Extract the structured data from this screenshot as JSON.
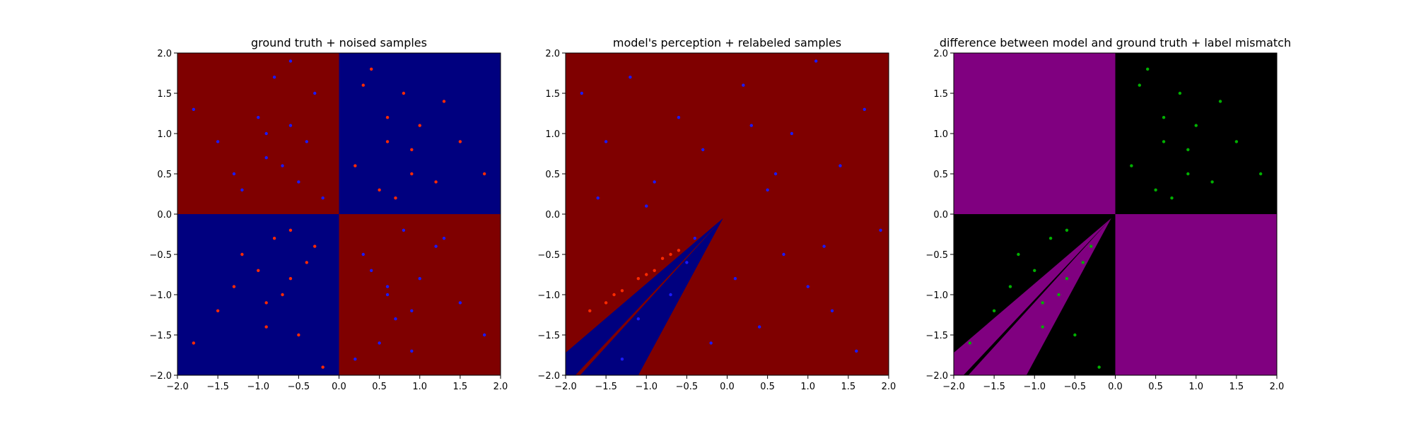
{
  "chart_data": [
    {
      "type": "scatter",
      "title": "ground truth + noised samples",
      "xlim": [
        -2,
        2
      ],
      "ylim": [
        -2,
        2
      ],
      "xticks": [
        {
          "value": -2,
          "label": "−2.0"
        },
        {
          "value": -1.5,
          "label": "−1.5"
        },
        {
          "value": -1,
          "label": "−1.0"
        },
        {
          "value": -0.5,
          "label": "−0.5"
        },
        {
          "value": 0,
          "label": "0.0"
        },
        {
          "value": 0.5,
          "label": "0.5"
        },
        {
          "value": 1,
          "label": "1.0"
        },
        {
          "value": 1.5,
          "label": "1.5"
        },
        {
          "value": 2,
          "label": "2.0"
        }
      ],
      "yticks": [
        {
          "value": -2,
          "label": "−2.0"
        },
        {
          "value": -1.5,
          "label": "−1.5"
        },
        {
          "value": -1,
          "label": "−1.0"
        },
        {
          "value": -0.5,
          "label": "−0.5"
        },
        {
          "value": 0,
          "label": "0.0"
        },
        {
          "value": 0.5,
          "label": "0.5"
        },
        {
          "value": 1,
          "label": "1.0"
        },
        {
          "value": 1.5,
          "label": "1.5"
        },
        {
          "value": 2,
          "label": "2.0"
        }
      ],
      "regions": [
        {
          "color": "#7f0000",
          "x": [
            -2,
            0,
            0,
            -2
          ],
          "y": [
            0,
            0,
            2,
            2
          ]
        },
        {
          "color": "#00007f",
          "x": [
            0,
            2,
            2,
            0
          ],
          "y": [
            0,
            0,
            2,
            2
          ]
        },
        {
          "color": "#00007f",
          "x": [
            -2,
            0,
            0,
            -2
          ],
          "y": [
            -2,
            -2,
            0,
            0
          ]
        },
        {
          "color": "#7f0000",
          "x": [
            0,
            2,
            2,
            0
          ],
          "y": [
            -2,
            -2,
            0,
            0
          ]
        }
      ],
      "series": [
        {
          "color": "#ff2a00",
          "x": [
            0.3,
            0.6,
            0.9,
            1.2,
            0.5,
            0.8,
            1.5,
            0.2,
            1.0,
            0.7,
            1.8,
            0.4,
            1.3,
            0.9,
            0.6,
            -0.3,
            -0.6,
            -0.9,
            -1.2,
            -0.5,
            -0.8,
            -1.5,
            -0.2,
            -1.0,
            -0.7,
            -1.8,
            -0.4,
            -1.3,
            -0.9,
            -0.6
          ],
          "values": [
            1.6,
            1.2,
            0.8,
            0.4,
            0.3,
            1.5,
            0.9,
            0.6,
            1.1,
            0.2,
            0.5,
            1.8,
            1.4,
            0.5,
            0.9,
            -0.4,
            -0.8,
            -1.1,
            -0.5,
            -1.5,
            -0.3,
            -1.2,
            -1.9,
            -0.7,
            -1.0,
            -1.6,
            -0.6,
            -0.9,
            -1.4,
            -0.2
          ]
        },
        {
          "color": "#1a1aff",
          "x": [
            -0.3,
            -0.6,
            -0.9,
            -1.2,
            -0.5,
            -0.8,
            -1.5,
            -0.2,
            -1.0,
            -0.7,
            -1.8,
            -0.4,
            -1.3,
            -0.9,
            -0.6,
            0.3,
            0.6,
            0.9,
            1.2,
            0.5,
            0.8,
            1.5,
            0.2,
            1.0,
            0.7,
            1.8,
            0.4,
            1.3,
            0.9,
            0.6
          ],
          "values": [
            1.5,
            1.1,
            0.7,
            0.3,
            0.4,
            1.7,
            0.9,
            0.2,
            1.2,
            0.6,
            1.3,
            0.9,
            0.5,
            1.0,
            1.9,
            -0.5,
            -0.9,
            -1.2,
            -0.4,
            -1.6,
            -0.2,
            -1.1,
            -1.8,
            -0.8,
            -1.3,
            -1.5,
            -0.7,
            -0.3,
            -1.7,
            -1.0
          ]
        }
      ]
    },
    {
      "type": "scatter",
      "title": "model's perception + relabeled samples",
      "xlim": [
        -2,
        2
      ],
      "ylim": [
        -2,
        2
      ],
      "xticks": [
        {
          "value": -2,
          "label": "−2.0"
        },
        {
          "value": -1.5,
          "label": "−1.5"
        },
        {
          "value": -1,
          "label": "−1.0"
        },
        {
          "value": -0.5,
          "label": "−0.5"
        },
        {
          "value": 0,
          "label": "0.0"
        },
        {
          "value": 0.5,
          "label": "0.5"
        },
        {
          "value": 1,
          "label": "1.0"
        },
        {
          "value": 1.5,
          "label": "1.5"
        },
        {
          "value": 2,
          "label": "2.0"
        }
      ],
      "yticks": [
        {
          "value": -2,
          "label": "−2.0"
        },
        {
          "value": -1.5,
          "label": "−1.5"
        },
        {
          "value": -1,
          "label": "−1.0"
        },
        {
          "value": -0.5,
          "label": "−0.5"
        },
        {
          "value": 0,
          "label": "0.0"
        },
        {
          "value": 0.5,
          "label": "0.5"
        },
        {
          "value": 1,
          "label": "1.0"
        },
        {
          "value": 1.5,
          "label": "1.5"
        },
        {
          "value": 2,
          "label": "2.0"
        }
      ],
      "regions": [
        {
          "color": "#7f0000",
          "x": [
            -2,
            2,
            2,
            -2
          ],
          "y": [
            -2,
            -2,
            2,
            2
          ]
        },
        {
          "color": "#00007f",
          "x": [
            -0.05,
            -1.1,
            -2,
            -2
          ],
          "y": [
            -0.05,
            -2,
            -2,
            -1.72
          ]
        },
        {
          "color": "#7f0000",
          "x": [
            -0.05,
            -1.82,
            -1.88
          ],
          "y": [
            -0.05,
            -2,
            -2
          ]
        }
      ],
      "series": [
        {
          "color": "#ff2a00",
          "x": [
            -1.7,
            -1.5,
            -1.3,
            -1.1,
            -0.9,
            -0.8,
            -0.7,
            -0.6,
            -1.4,
            -1.0
          ],
          "values": [
            -1.2,
            -1.1,
            -0.95,
            -0.8,
            -0.7,
            -0.55,
            -0.5,
            -0.45,
            -1.0,
            -0.75
          ]
        },
        {
          "color": "#1a1aff",
          "x": [
            -1.8,
            -1.5,
            -1.2,
            -0.9,
            -0.6,
            -0.3,
            0.2,
            0.5,
            0.8,
            1.1,
            1.4,
            1.7,
            -1.6,
            -1.0,
            -0.4,
            0.1,
            0.7,
            1.3,
            1.9,
            -0.7,
            -0.2,
            0.4,
            1.0,
            1.6,
            -1.3,
            0.6,
            -0.5,
            1.2,
            0.3,
            -1.1
          ],
          "values": [
            1.5,
            0.9,
            1.7,
            0.4,
            1.2,
            0.8,
            1.6,
            0.3,
            1.0,
            1.9,
            0.6,
            1.3,
            0.2,
            0.1,
            -0.3,
            -0.8,
            -0.5,
            -1.2,
            -0.2,
            -1.0,
            -1.6,
            -1.4,
            -0.9,
            -1.7,
            -1.8,
            0.5,
            -0.6,
            -0.4,
            1.1,
            -1.3
          ]
        }
      ]
    },
    {
      "type": "scatter",
      "title": "difference between model and ground truth + label mismatch",
      "xlim": [
        -2,
        2
      ],
      "ylim": [
        -2,
        2
      ],
      "xticks": [
        {
          "value": -2,
          "label": "−2.0"
        },
        {
          "value": -1.5,
          "label": "−1.5"
        },
        {
          "value": -1,
          "label": "−1.0"
        },
        {
          "value": -0.5,
          "label": "−0.5"
        },
        {
          "value": 0,
          "label": "0.0"
        },
        {
          "value": 0.5,
          "label": "0.5"
        },
        {
          "value": 1,
          "label": "1.0"
        },
        {
          "value": 1.5,
          "label": "1.5"
        },
        {
          "value": 2,
          "label": "2.0"
        }
      ],
      "yticks": [
        {
          "value": -2,
          "label": "−2.0"
        },
        {
          "value": -1.5,
          "label": "−1.5"
        },
        {
          "value": -1,
          "label": "−1.0"
        },
        {
          "value": -0.5,
          "label": "−0.5"
        },
        {
          "value": 0,
          "label": "0.0"
        },
        {
          "value": 0.5,
          "label": "0.5"
        },
        {
          "value": 1,
          "label": "1.0"
        },
        {
          "value": 1.5,
          "label": "1.5"
        },
        {
          "value": 2,
          "label": "2.0"
        }
      ],
      "regions": [
        {
          "color": "#000000",
          "x": [
            -2,
            2,
            2,
            -2
          ],
          "y": [
            -2,
            -2,
            2,
            2
          ]
        },
        {
          "color": "#800080",
          "x": [
            -2,
            0,
            0,
            -2
          ],
          "y": [
            0,
            0,
            2,
            2
          ]
        },
        {
          "color": "#800080",
          "x": [
            0,
            2,
            2,
            0
          ],
          "y": [
            -2,
            -2,
            0,
            0
          ]
        },
        {
          "color": "#800080",
          "x": [
            -0.05,
            -1.1,
            -2,
            -2
          ],
          "y": [
            -0.05,
            -2,
            -2,
            -1.72
          ]
        },
        {
          "color": "#000000",
          "x": [
            -0.05,
            -1.82,
            -1.88
          ],
          "y": [
            -0.05,
            -2,
            -2
          ]
        }
      ],
      "series": [
        {
          "color": "#00b000",
          "x": [
            0.3,
            0.6,
            0.9,
            1.2,
            0.5,
            0.8,
            1.5,
            0.2,
            1.0,
            0.7,
            1.8,
            0.4,
            1.3,
            0.9,
            0.6,
            -0.3,
            -0.6,
            -0.9,
            -1.2,
            -0.5,
            -0.8,
            -1.5,
            -0.2,
            -1.0,
            -0.7,
            -1.8,
            -0.4,
            -1.3,
            -0.9,
            -0.6
          ],
          "values": [
            1.6,
            1.2,
            0.8,
            0.4,
            0.3,
            1.5,
            0.9,
            0.6,
            1.1,
            0.2,
            0.5,
            1.8,
            1.4,
            0.5,
            0.9,
            -0.4,
            -0.8,
            -1.1,
            -0.5,
            -1.5,
            -0.3,
            -1.2,
            -1.9,
            -0.7,
            -1.0,
            -1.6,
            -0.6,
            -0.9,
            -1.4,
            -0.2
          ]
        }
      ]
    }
  ]
}
